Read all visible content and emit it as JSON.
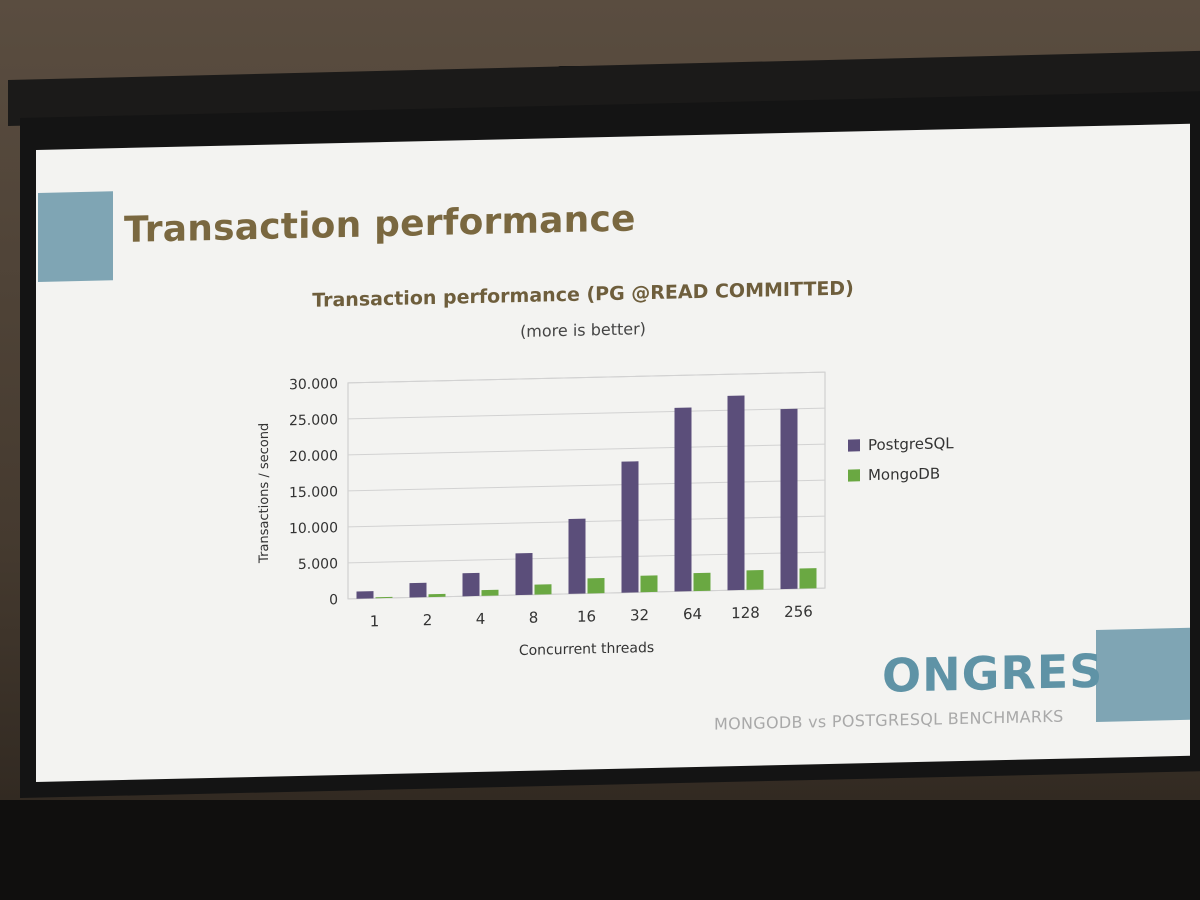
{
  "slide": {
    "title": "Transaction performance",
    "logo_text": "ONGRES",
    "tagline": "MONGODB vs POSTGRESQL BENCHMARKS"
  },
  "colors": {
    "title": "#7a6840",
    "accent": "#7fa5b4",
    "postgres": "#5b4e7a",
    "mongo": "#6aa842",
    "logo": "#5f93a6"
  },
  "chart_data": {
    "type": "bar",
    "title": "Transaction performance (PG @READ COMMITTED)",
    "subtitle": "(more is better)",
    "xlabel": "Concurrent threads",
    "ylabel": "Transactions / second",
    "categories": [
      "1",
      "2",
      "4",
      "8",
      "16",
      "32",
      "64",
      "128",
      "256"
    ],
    "series": [
      {
        "name": "PostgreSQL",
        "color": "#5b4e7a",
        "values": [
          1000,
          2000,
          3200,
          5800,
          10400,
          18200,
          25500,
          27000,
          25000
        ]
      },
      {
        "name": "MongoDB",
        "color": "#6aa842",
        "values": [
          150,
          400,
          800,
          1400,
          2100,
          2300,
          2500,
          2700,
          2800
        ]
      }
    ],
    "ylim": [
      0,
      30000
    ],
    "yticks": [
      "0",
      "5.000",
      "10.000",
      "15.000",
      "20.000",
      "25.000",
      "30.000"
    ],
    "grid": true,
    "legend_position": "right"
  }
}
